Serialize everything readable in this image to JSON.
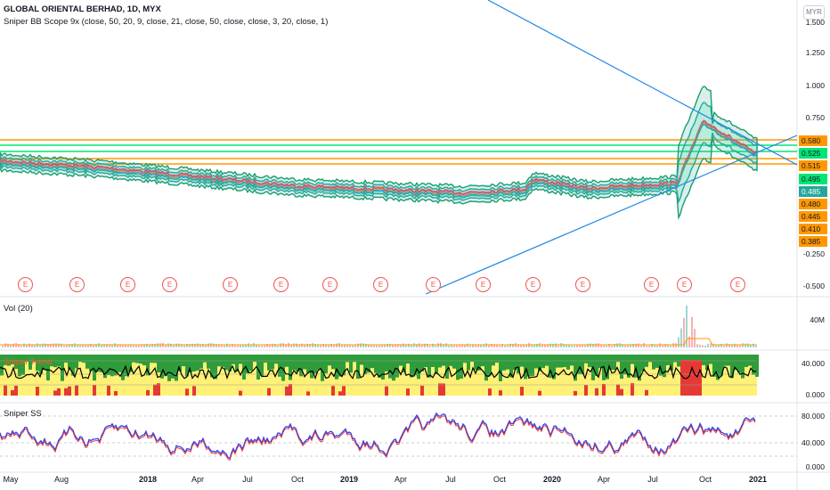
{
  "chart_title": "GLOBAL ORIENTAL BERHAD, 1D, MYX",
  "indicator_bb": "Sniper BB Scope 9x (close, 50, 20, 9, close, 21, close, 50, close, close, 3, 20, close, 1)",
  "currency": "MYR",
  "volume_label": "Vol (20)",
  "volume_axis": [
    "40M"
  ],
  "trend_label": "Sniper Trend",
  "trend_axis": [
    "40.000",
    "0.000"
  ],
  "ss_label": "Sniper SS",
  "ss_axis": [
    "80.000",
    "40.000",
    "0.000"
  ],
  "price_axis": [
    "1.500",
    "1.250",
    "1.000",
    "0.750",
    "-0.250",
    "-0.500"
  ],
  "price_tags": [
    {
      "value": "0.580",
      "color": "orange"
    },
    {
      "value": "0.525",
      "color": "green"
    },
    {
      "value": "0.515",
      "color": "orange"
    },
    {
      "value": "0.495",
      "color": "green"
    },
    {
      "value": "0.485",
      "color": "teal"
    },
    {
      "value": "0.480",
      "color": "orange"
    },
    {
      "value": "0.445",
      "color": "orange"
    },
    {
      "value": "0.410",
      "color": "orange"
    },
    {
      "value": "0.385",
      "color": "orange"
    }
  ],
  "x_labels": [
    "May",
    "Aug",
    "2018",
    "Apr",
    "Jul",
    "Oct",
    "2019",
    "Apr",
    "Jul",
    "Oct",
    "2020",
    "Apr",
    "Jul",
    "Oct",
    "2021"
  ],
  "earnings_marker": "E",
  "earnings_count": 15
}
